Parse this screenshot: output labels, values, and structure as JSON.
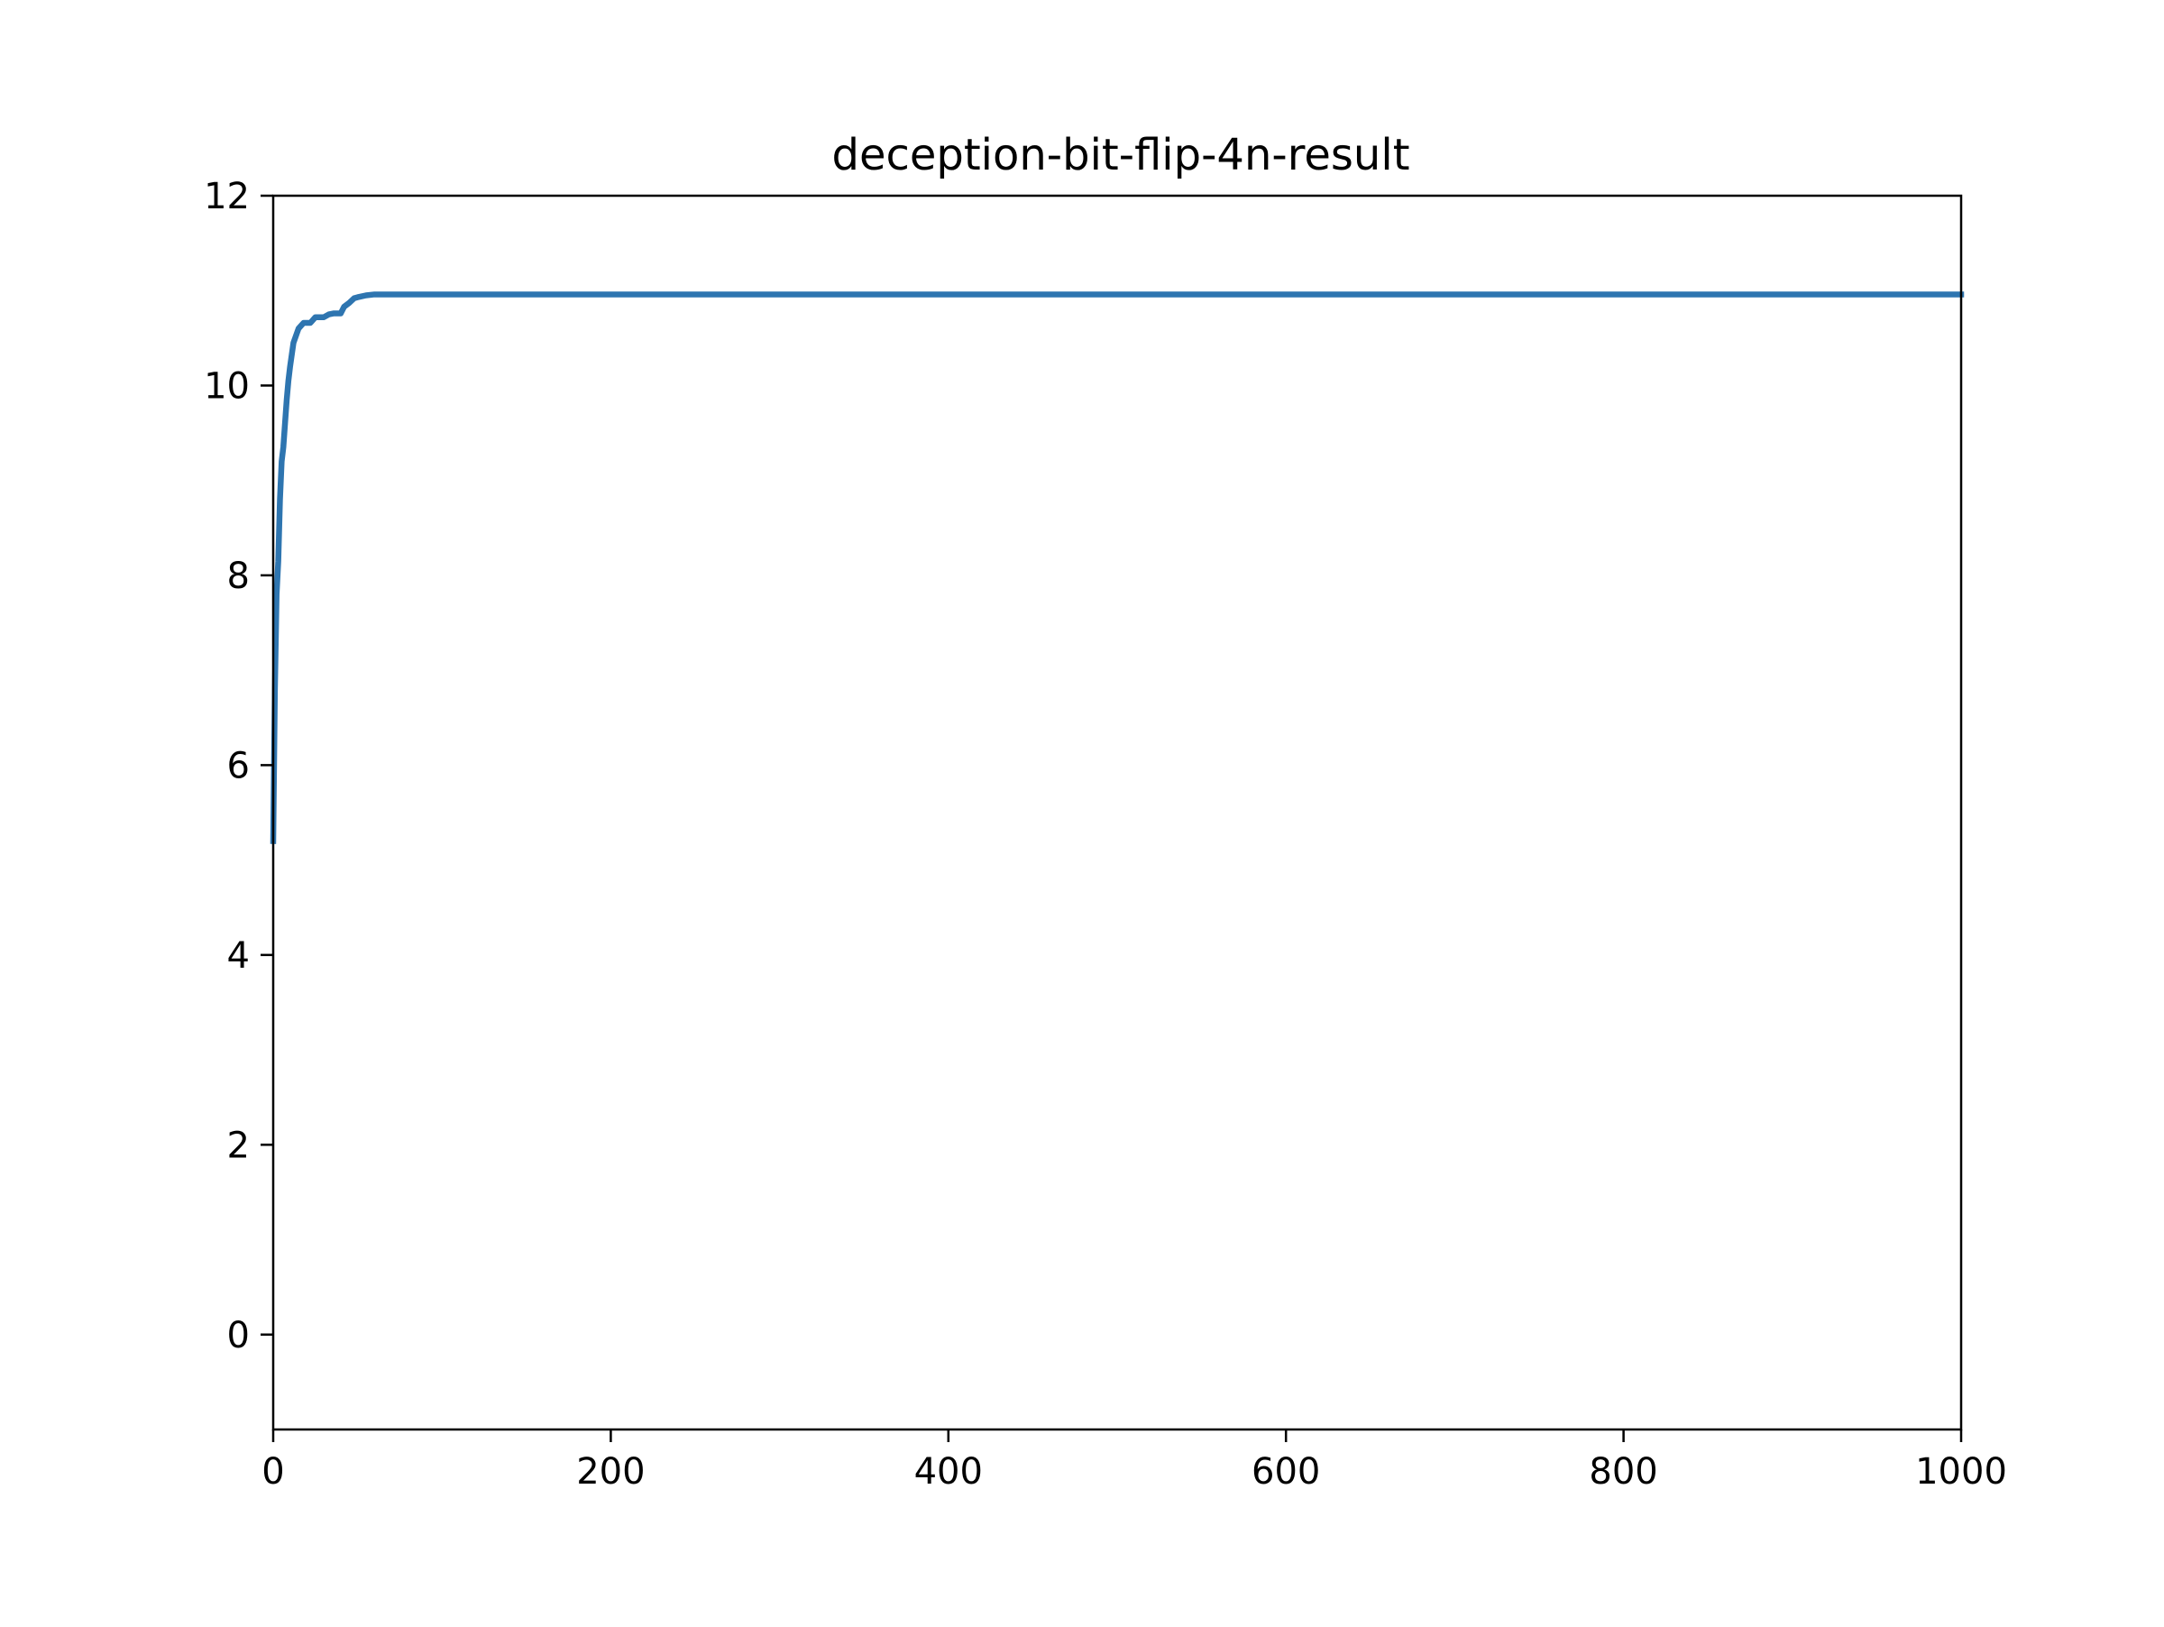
{
  "chart_data": {
    "type": "line",
    "title": "deception-bit-flip-4n-result",
    "xlabel": "",
    "ylabel": "",
    "xlim": [
      0,
      1000
    ],
    "ylim": [
      -1,
      12
    ],
    "x_ticks": [
      0,
      200,
      400,
      600,
      800,
      1000
    ],
    "x_tick_labels": [
      "0",
      "200",
      "400",
      "600",
      "800",
      "1000"
    ],
    "y_ticks": [
      0,
      2,
      4,
      6,
      8,
      10,
      12
    ],
    "y_tick_labels": [
      "0",
      "2",
      "4",
      "6",
      "8",
      "10",
      "12"
    ],
    "grid": false,
    "legend": "none",
    "series": [
      {
        "color": "#2e75b0",
        "x": [
          0,
          1,
          2,
          3,
          4,
          5,
          6,
          7,
          8,
          9,
          10,
          12,
          14,
          15,
          16,
          18,
          20,
          22,
          25,
          27,
          30,
          33,
          36,
          38,
          40,
          42,
          45,
          48,
          50,
          55,
          60,
          100,
          200,
          300,
          400,
          500,
          600,
          700,
          800,
          900,
          1000
        ],
        "y": [
          5.2,
          6.8,
          7.8,
          8.15,
          8.8,
          9.2,
          9.35,
          9.6,
          9.85,
          10.05,
          10.2,
          10.45,
          10.55,
          10.6,
          10.62,
          10.66,
          10.66,
          10.66,
          10.72,
          10.72,
          10.72,
          10.75,
          10.76,
          10.76,
          10.76,
          10.83,
          10.87,
          10.92,
          10.93,
          10.95,
          10.96,
          10.96,
          10.96,
          10.96,
          10.96,
          10.96,
          10.96,
          10.96,
          10.96,
          10.96,
          10.96
        ]
      }
    ]
  }
}
